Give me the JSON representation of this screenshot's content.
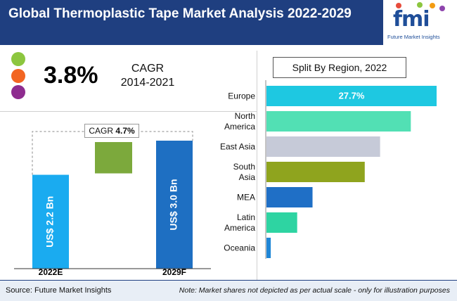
{
  "header": {
    "title": "Global Thermoplastic Tape Market Analysis 2022-2029"
  },
  "logo": {
    "letters": "fmi",
    "subtitle": "Future Market Insights",
    "dot_colors": [
      "#e74c3c",
      "#8cc63f",
      "#f39c12",
      "#8e44ad"
    ]
  },
  "kpi": {
    "value": "3.8%",
    "label": "CAGR",
    "period": "2014-2021",
    "dot_colors": [
      "#8cc63f",
      "#f26522",
      "#8e2c8f"
    ]
  },
  "chart_data": [
    {
      "type": "bar",
      "categories": [
        "2022E",
        "2029F"
      ],
      "values": [
        2.2,
        3.0
      ],
      "value_labels": [
        "US$ 2.2 Bn",
        "US$ 3.0 Bn"
      ],
      "annotation": {
        "label": "CAGR",
        "value": "4.7%"
      },
      "colors": {
        "bars": "#1aabf0",
        "bar2": "#1e6fc2",
        "increment": "#7ca93c"
      }
    },
    {
      "type": "bar",
      "title": "Split By Region, 2022",
      "orientation": "horizontal",
      "categories": [
        "Europe",
        "North America",
        "East Asia",
        "South Asia",
        "MEA",
        "Latin America",
        "Oceania"
      ],
      "category_lines": [
        [
          "Europe"
        ],
        [
          "North",
          "America"
        ],
        [
          "East Asia"
        ],
        [
          "South",
          "Asia"
        ],
        [
          "MEA"
        ],
        [
          "Latin",
          "America"
        ],
        [
          "Oceania"
        ]
      ],
      "values": [
        27.7,
        23.5,
        18.5,
        16.0,
        7.5,
        5.0,
        0.7
      ],
      "data_labels": [
        "27.7%",
        "",
        "",
        "",
        "",
        "",
        ""
      ],
      "colors": [
        "#1ec8e1",
        "#52e0b4",
        "#c6cad8",
        "#8fa41e",
        "#1f6fc6",
        "#2ed4a2",
        "#1f86d6"
      ]
    }
  ],
  "footer": {
    "source": "Source: Future Market Insights",
    "note": "Note: Market shares not depicted as per actual scale - only for illustration purposes"
  }
}
